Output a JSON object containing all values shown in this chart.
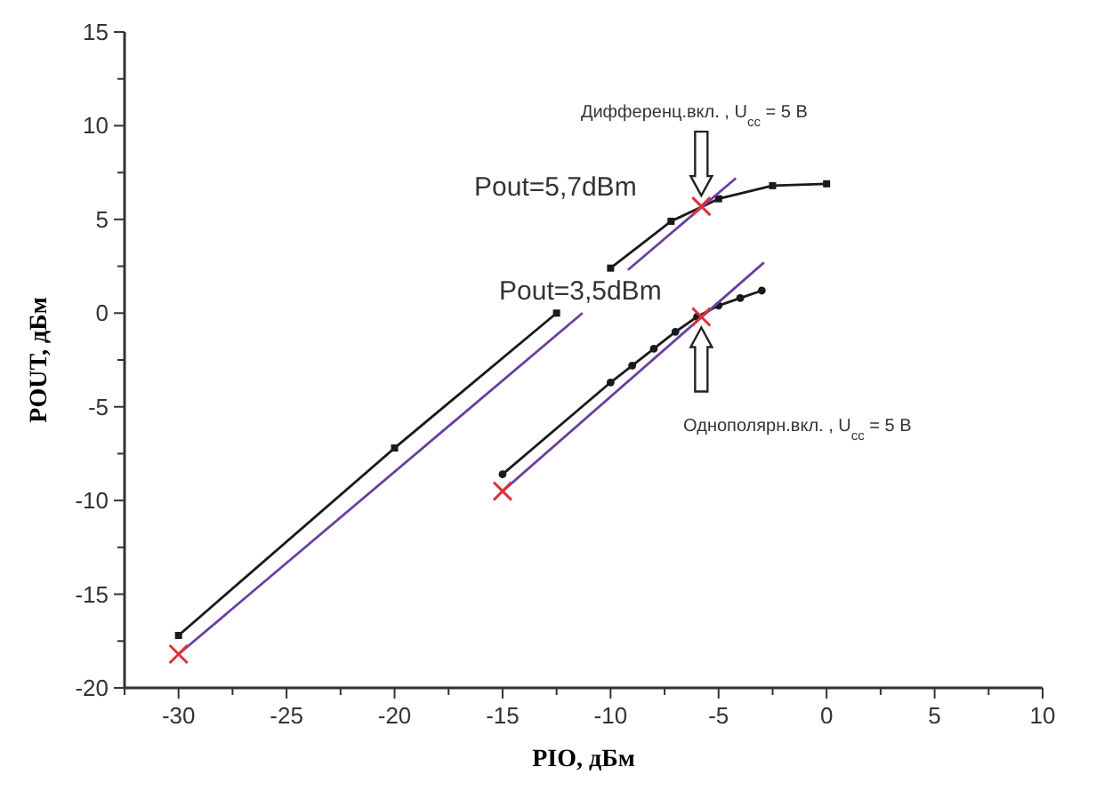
{
  "chart_data": {
    "type": "line",
    "xlabel": "PIO, дБм",
    "ylabel": "POUT, дБм",
    "xlim": [
      -32.5,
      10
    ],
    "ylim": [
      -20,
      15
    ],
    "xticks": [
      {
        "value": -32.5,
        "label": null
      },
      -30,
      {
        "value": -27.5,
        "label": null
      },
      -25,
      {
        "value": -22.5,
        "label": null
      },
      -20,
      {
        "value": -17.5,
        "label": null
      },
      -15,
      {
        "value": -12.5,
        "label": null
      },
      -10,
      {
        "value": -7.5,
        "label": null
      },
      -5,
      {
        "value": -2.5,
        "label": null
      },
      0,
      {
        "value": 2.5,
        "label": null
      },
      5,
      {
        "value": 7.5,
        "label": null
      },
      10
    ],
    "yticks": [
      -20,
      {
        "value": -17.5,
        "label": null
      },
      -15,
      {
        "value": -12.5,
        "label": null
      },
      -10,
      {
        "value": -7.5,
        "label": null
      },
      -5,
      {
        "value": -2.5,
        "label": null
      },
      0,
      {
        "value": 2.5,
        "label": null
      },
      5,
      {
        "value": 7.5,
        "label": null
      },
      10,
      {
        "value": 12.5,
        "label": null
      },
      15
    ],
    "grid": false,
    "line_style": "solid",
    "series": [
      {
        "color": "#1a1a1a",
        "marker": "square",
        "x": [
          -30,
          -20,
          -12.5,
          -11.25,
          -10,
          -7.2,
          -5,
          -2.5,
          0
        ],
        "values": [
          -17.2,
          -7.2,
          0,
          null,
          2.4,
          4.9,
          6.1,
          6.8,
          6.9
        ]
      },
      {
        "color": "#6a3fa0",
        "marker": "none",
        "x": [
          -30,
          -11.3,
          -10.3,
          -9.2,
          -4.2
        ],
        "values": [
          -18.2,
          0,
          null,
          2.3,
          7.2
        ]
      },
      {
        "color": "#1a1a1a",
        "marker": "circle",
        "x": [
          -15,
          -10,
          -9,
          -8,
          -7,
          -6,
          -5,
          -4,
          -3
        ],
        "values": [
          -8.6,
          -3.7,
          -2.8,
          -1.9,
          -1.0,
          -0.2,
          0.4,
          0.8,
          1.2
        ]
      },
      {
        "color": "#6a3fa0",
        "marker": "none",
        "x": [
          -15,
          -2.9
        ],
        "values": [
          -9.5,
          2.7
        ]
      },
      {
        "type": "scatter",
        "color": "#e0303a",
        "marker": "cross",
        "x": [
          -30,
          -15,
          -5.8,
          -5.8
        ],
        "values": [
          -18.2,
          -9.5,
          5.7,
          -0.2
        ]
      }
    ],
    "annotations": [
      "Pout=5,7dBm",
      "Pout=3,5dBm",
      "Дифференц.вкл. , U$_{cc}$ = 5 В",
      "Однополярн.вкл. , U$_{cc}$ = 5 В"
    ]
  }
}
